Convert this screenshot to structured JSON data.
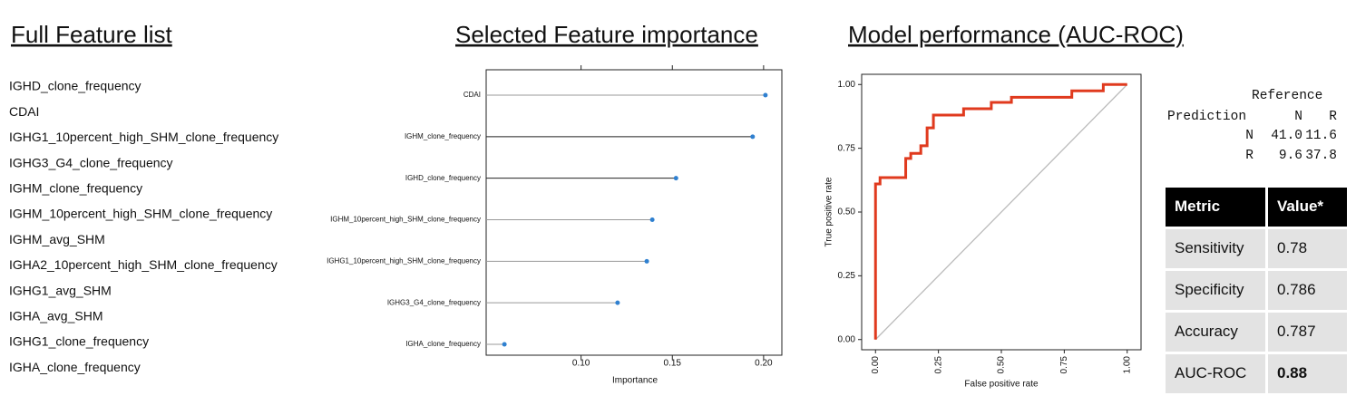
{
  "feature_list": {
    "title": "Full Feature list",
    "items": [
      "IGHD_clone_frequency",
      "CDAI",
      "IGHG1_10percent_high_SHM_clone_frequency",
      "IGHG3_G4_clone_frequency",
      "IGHM_clone_frequency",
      "IGHM_10percent_high_SHM_clone_frequency",
      "IGHM_avg_SHM",
      "IGHA2_10percent_high_SHM_clone_frequency",
      "IGHG1_avg_SHM",
      "IGHA_avg_SHM",
      "IGHG1_clone_frequency",
      "IGHA_clone_frequency"
    ]
  },
  "chart_data": [
    {
      "type": "lollipop",
      "title": "Selected Feature importance",
      "x_label": "Importance",
      "categories": [
        "CDAI",
        "IGHM_clone_frequency",
        "IGHD_clone_frequency",
        "IGHM_10percent_high_SHM_clone_frequency",
        "IGHG1_10percent_high_SHM_clone_frequency",
        "IGHG3_G4_clone_frequency",
        "IGHA_clone_frequency"
      ],
      "values": [
        0.201,
        0.194,
        0.152,
        0.139,
        0.136,
        0.12,
        0.058
      ],
      "line_colors": [
        "#999999",
        "#222222",
        "#222222",
        "#999999",
        "#999999",
        "#999999",
        "#999999"
      ],
      "color": "#2f80d0",
      "xlim": [
        0.048,
        0.21
      ],
      "xticks": [
        {
          "value": 0.1,
          "label": "0.10"
        },
        {
          "value": 0.15,
          "label": "0.15"
        },
        {
          "value": 0.2,
          "label": "0.20"
        }
      ]
    },
    {
      "type": "line",
      "title": "Model performance (AUC-ROC)",
      "x_label": "False positive rate",
      "y_label": "True positive rate",
      "series": [
        {
          "name": "ROC",
          "color": "#e03a1e",
          "x": [
            0,
            0,
            0.018,
            0.018,
            0.12,
            0.12,
            0.14,
            0.14,
            0.18,
            0.18,
            0.205,
            0.205,
            0.23,
            0.23,
            0.35,
            0.35,
            0.46,
            0.46,
            0.54,
            0.54,
            0.78,
            0.78,
            0.905,
            0.905,
            1.0
          ],
          "values": [
            0,
            0.61,
            0.61,
            0.635,
            0.635,
            0.71,
            0.71,
            0.73,
            0.73,
            0.76,
            0.76,
            0.83,
            0.83,
            0.88,
            0.88,
            0.905,
            0.905,
            0.93,
            0.93,
            0.95,
            0.95,
            0.975,
            0.975,
            1.0,
            1.0
          ]
        }
      ],
      "xlim": [
        -0.055,
        1.055
      ],
      "ylim": [
        -0.04,
        1.04
      ],
      "xticks": [
        {
          "value": 0,
          "label": "0.00"
        },
        {
          "value": 0.25,
          "label": "0.25"
        },
        {
          "value": 0.5,
          "label": "0.50"
        },
        {
          "value": 0.75,
          "label": "0.75"
        },
        {
          "value": 1,
          "label": "1.00"
        }
      ],
      "yticks": [
        {
          "value": 0,
          "label": "0.00"
        },
        {
          "value": 0.25,
          "label": "0.25"
        },
        {
          "value": 0.5,
          "label": "0.50"
        },
        {
          "value": 0.75,
          "label": "0.75"
        },
        {
          "value": 1,
          "label": "1.00"
        }
      ]
    }
  ],
  "confusion_matrix": {
    "reference_label": "Reference",
    "prediction_label": "Prediction",
    "columns": [
      "N",
      "R"
    ],
    "rows": [
      {
        "label": "N",
        "cells": [
          "41.0",
          "11.6"
        ]
      },
      {
        "label": "R",
        "cells": [
          "9.6",
          "37.8"
        ]
      }
    ]
  },
  "metrics_table": {
    "header": [
      "Metric",
      "Value*"
    ],
    "rows": [
      [
        "Sensitivity",
        "0.78"
      ],
      [
        "Specificity",
        "0.786"
      ],
      [
        "Accuracy",
        "0.787"
      ],
      [
        "AUC-ROC",
        "0.88"
      ]
    ]
  }
}
